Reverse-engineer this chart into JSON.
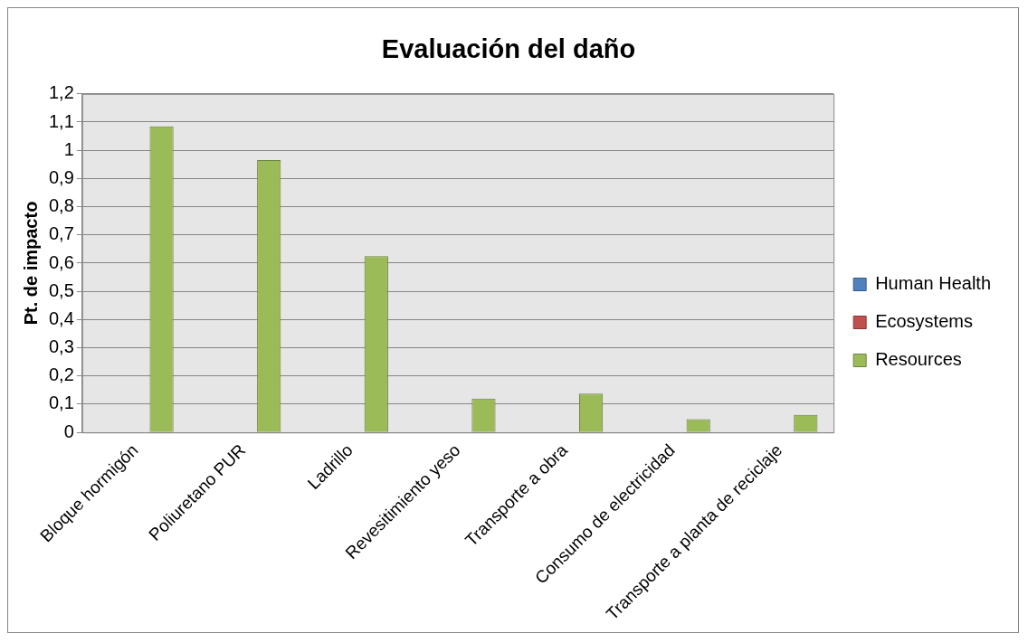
{
  "chart_data": {
    "type": "bar",
    "title": "Evaluación del daño",
    "ylabel": "Pt. de impacto",
    "categories": [
      "Bloque hormigón",
      "Poliuretano PUR",
      "Ladrillo",
      "Revesitimiento yeso",
      "Transporte a obra",
      "Consumo de electricidad",
      "Transporte a planta de reciclaje"
    ],
    "series": [
      {
        "name": "Human Health",
        "color": "#4f81bd",
        "values": [
          0,
          0,
          0,
          0,
          0,
          0,
          0
        ]
      },
      {
        "name": "Ecosystems",
        "color": "#c0504d",
        "values": [
          0,
          0,
          0,
          0,
          0,
          0,
          0
        ]
      },
      {
        "name": "Resources",
        "color": "#9bbb59",
        "values": [
          1.085,
          0.965,
          0.625,
          0.12,
          0.138,
          0.047,
          0.062
        ]
      }
    ],
    "ylim": [
      0,
      1.2
    ],
    "yticks": [
      0,
      {
        "value": 0.1,
        "label": "0,1"
      },
      {
        "value": 0.2,
        "label": "0,2"
      },
      {
        "value": 0.3,
        "label": "0,3"
      },
      {
        "value": 0.4,
        "label": "0,4"
      },
      {
        "value": 0.5,
        "label": "0,5"
      },
      {
        "value": 0.6,
        "label": "0,6"
      },
      {
        "value": 0.7,
        "label": "0,7"
      },
      {
        "value": 0.8,
        "label": "0,8"
      },
      {
        "value": 0.9,
        "label": "0,9"
      },
      1,
      {
        "value": 1.1,
        "label": "1,1"
      },
      {
        "value": 1.2,
        "label": "1,2"
      }
    ],
    "grid": "y",
    "legend": "right"
  }
}
